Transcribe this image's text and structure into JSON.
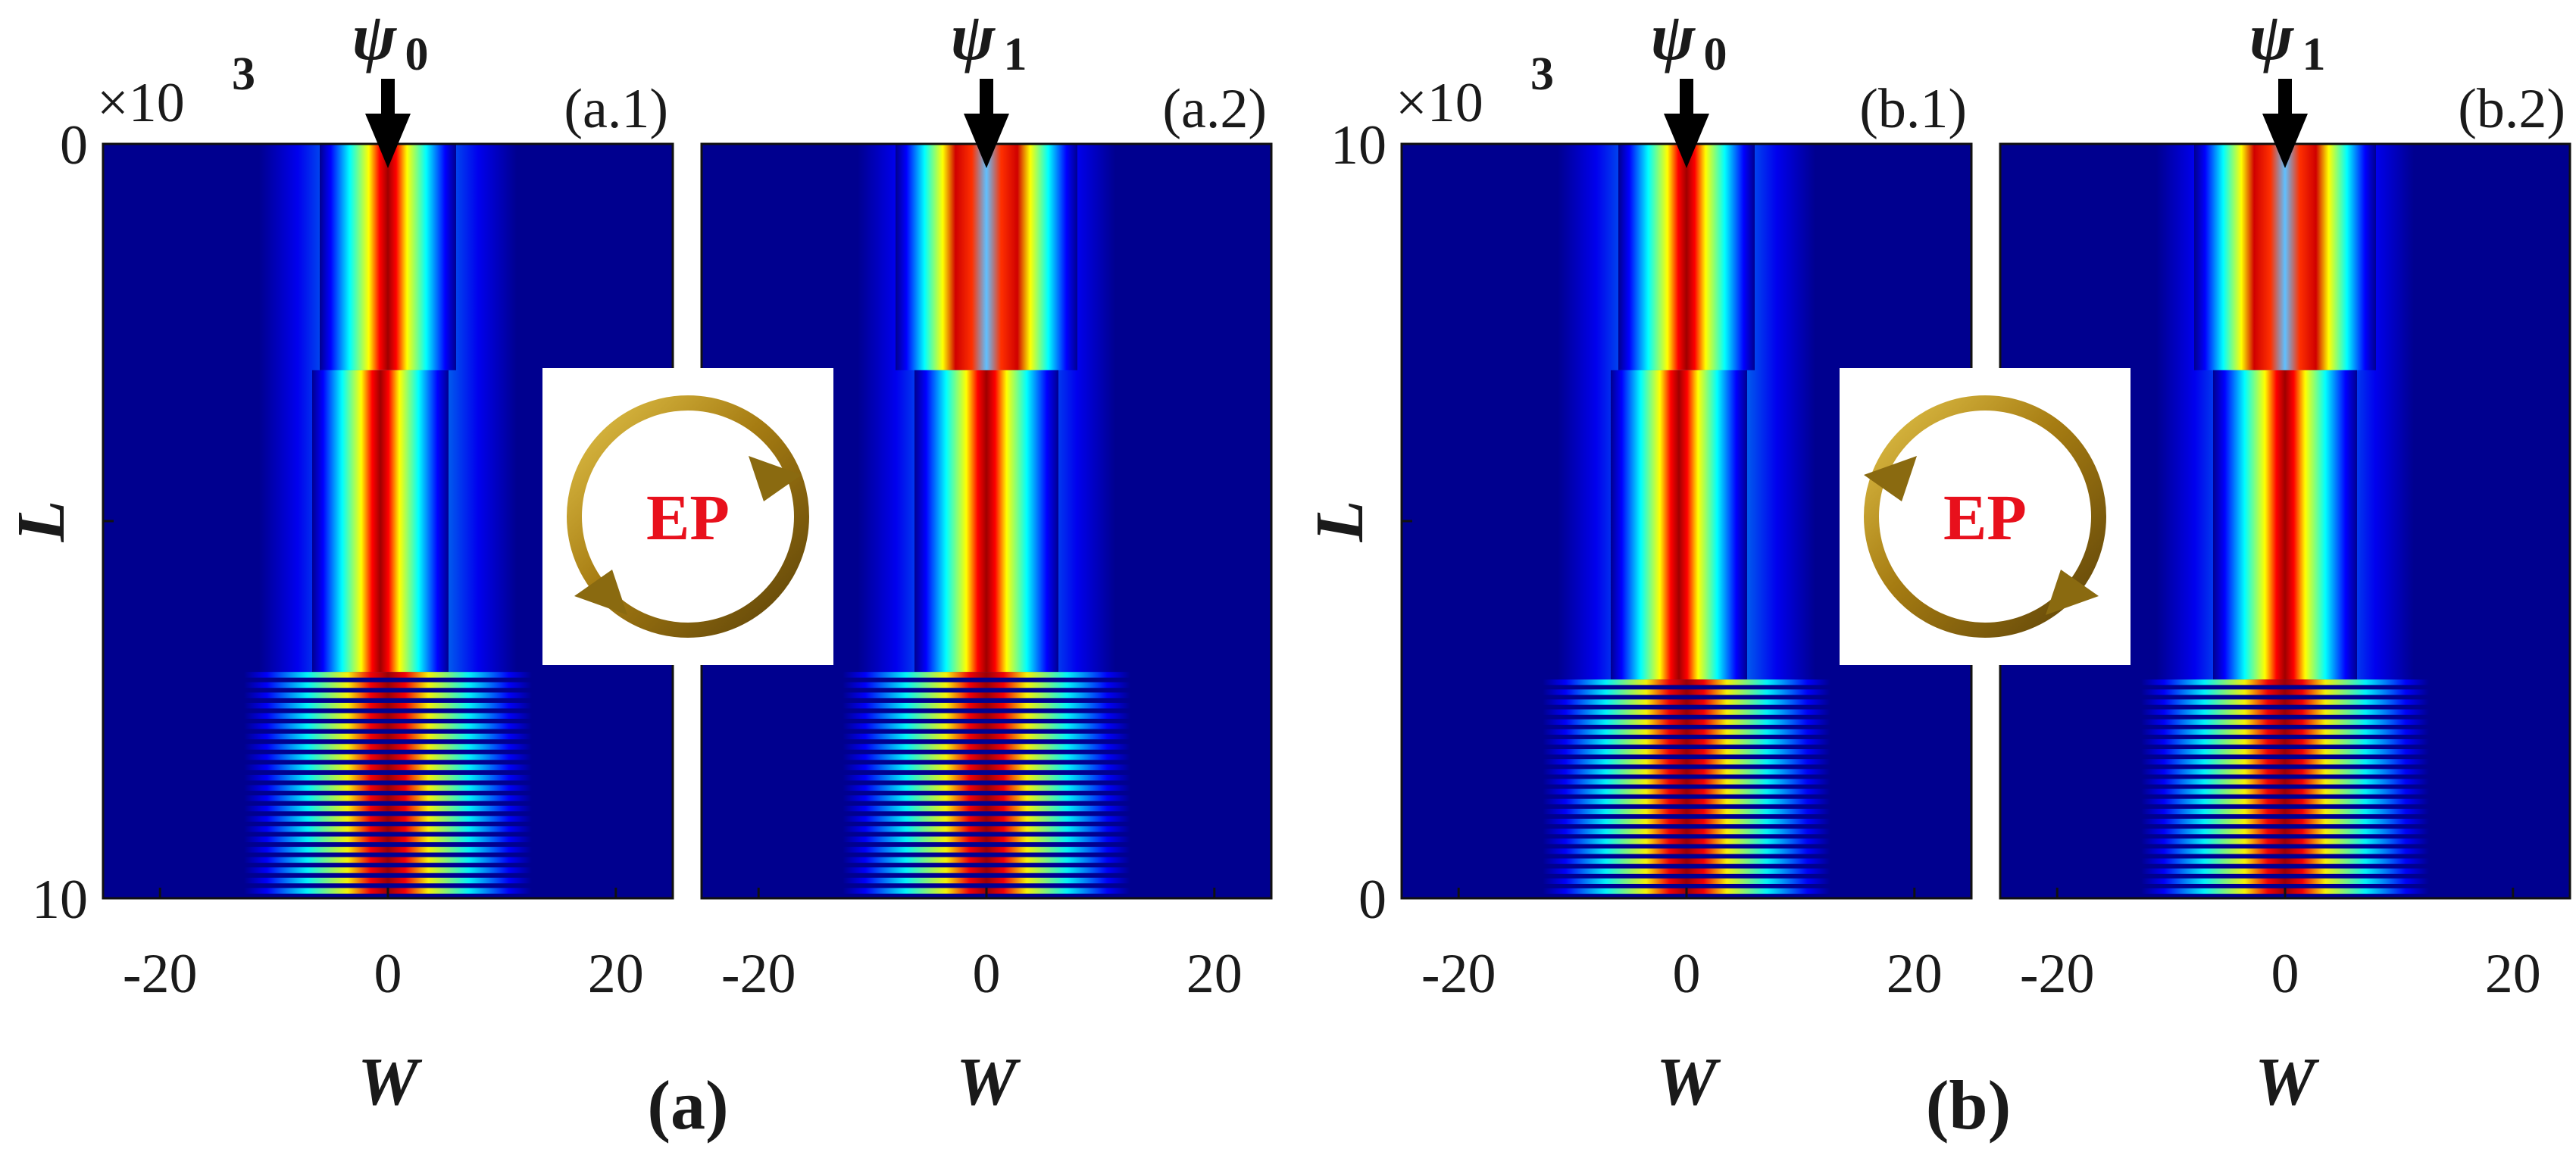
{
  "chart_data": {
    "type": "heatmap",
    "colormap": "jet",
    "groups": [
      {
        "label": "(a)",
        "ep_label": "EP",
        "loop_direction": "clockwise",
        "ylim_labels": [
          "0",
          "10"
        ],
        "y_multiplier": "×10",
        "y_multiplier_exp": "3"
      },
      {
        "label": "(b)",
        "ep_label": "EP",
        "loop_direction": "counterclockwise",
        "ylim_labels": [
          "10",
          "0"
        ],
        "y_multiplier": "×10",
        "y_multiplier_exp": "3"
      }
    ],
    "panels": [
      {
        "label": "(a.1)",
        "input_mode": "ψ",
        "input_sub": "0",
        "group": 0
      },
      {
        "label": "(a.2)",
        "input_mode": "ψ",
        "input_sub": "1",
        "group": 0
      },
      {
        "label": "(b.1)",
        "input_mode": "ψ",
        "input_sub": "0",
        "group": 1
      },
      {
        "label": "(b.2)",
        "input_mode": "ψ",
        "input_sub": "1",
        "group": 1
      }
    ],
    "xlabel": "W",
    "ylabel": "L",
    "xticks": [
      -20,
      0,
      20
    ],
    "xtick_labels": [
      "-20",
      "0",
      "20"
    ],
    "xlim": [
      -25,
      25
    ],
    "colors": {
      "background": "#00008f",
      "arrow_gold": "#8a6a10",
      "ep_text": "#e8101c"
    }
  }
}
